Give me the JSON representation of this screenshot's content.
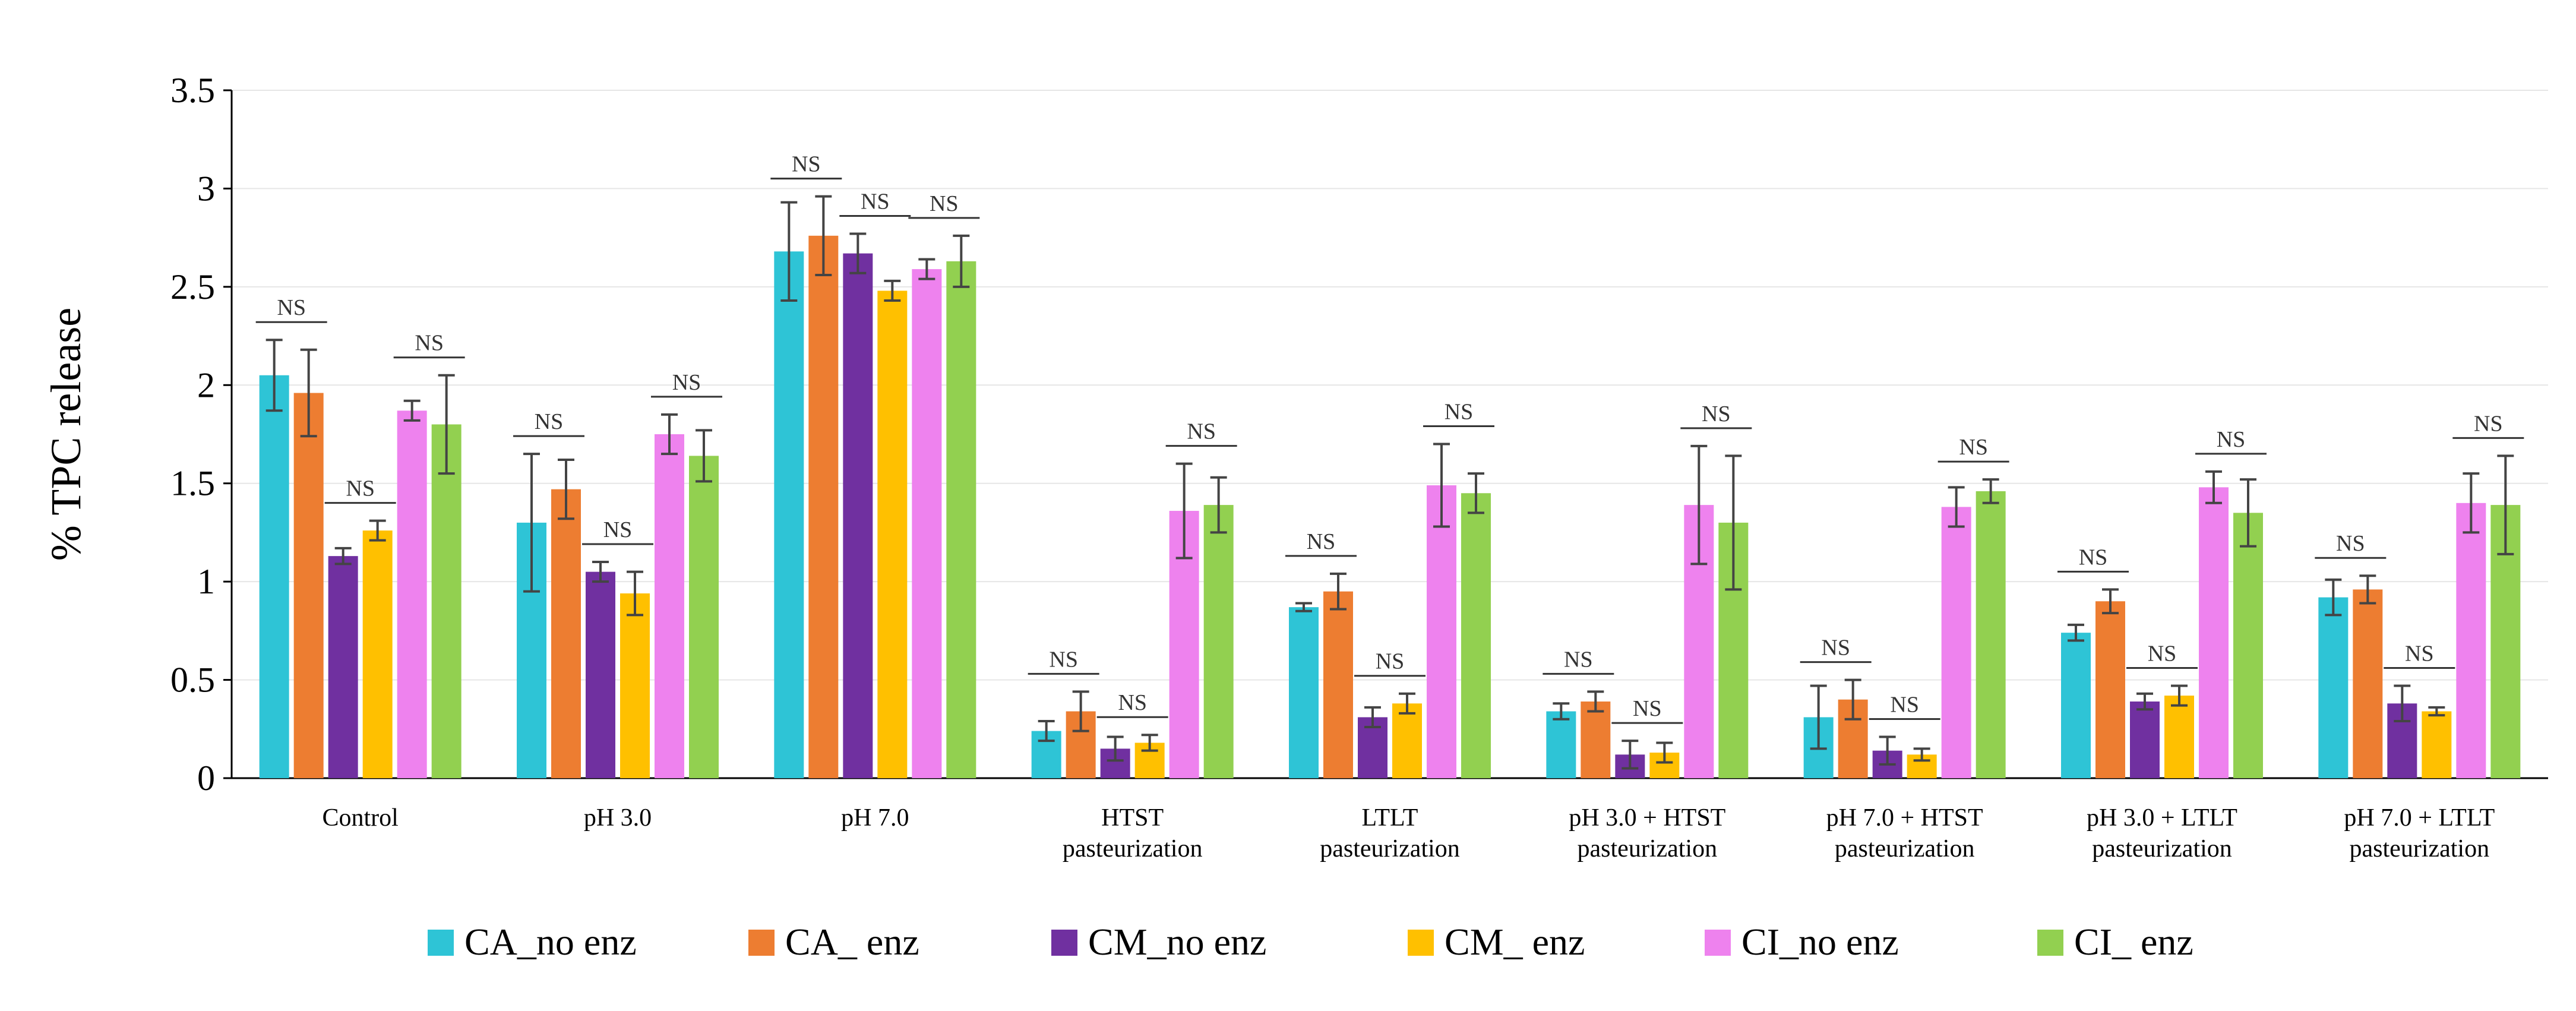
{
  "chart_data": {
    "type": "bar",
    "title": "",
    "xlabel": "",
    "ylabel": "% TPC release",
    "ylim": [
      0,
      3.5
    ],
    "yticks": [
      0,
      0.5,
      1,
      1.5,
      2,
      2.5,
      3,
      3.5
    ],
    "ytick_labels": [
      "0",
      "0.5",
      "1",
      "1.5",
      "2",
      "2.5",
      "3",
      "3.5"
    ],
    "grid": true,
    "legend_position": "bottom",
    "categories": [
      [
        "Control"
      ],
      [
        "pH 3.0"
      ],
      [
        "pH 7.0"
      ],
      [
        "HTST",
        "pasteurization"
      ],
      [
        "LTLT",
        "pasteurization"
      ],
      [
        "pH 3.0 + HTST",
        "pasteurization"
      ],
      [
        "pH 7.0 + HTST",
        "pasteurization"
      ],
      [
        "pH 3.0 + LTLT",
        "pasteurization"
      ],
      [
        "pH 7.0 + LTLT",
        "pasteurization"
      ]
    ],
    "series": [
      {
        "name": "CA_no enz",
        "color": "#2EC4D6",
        "values": [
          2.05,
          1.3,
          2.68,
          0.24,
          0.87,
          0.34,
          0.31,
          0.74,
          0.92
        ],
        "errors": [
          0.18,
          0.35,
          0.25,
          0.05,
          0.02,
          0.04,
          0.16,
          0.04,
          0.09
        ]
      },
      {
        "name": "CA_ enz",
        "color": "#ED7D31",
        "values": [
          1.96,
          1.47,
          2.76,
          0.34,
          0.95,
          0.39,
          0.4,
          0.9,
          0.96
        ],
        "errors": [
          0.22,
          0.15,
          0.2,
          0.1,
          0.09,
          0.05,
          0.1,
          0.06,
          0.07
        ]
      },
      {
        "name": "CM_no enz",
        "color": "#7030A0",
        "values": [
          1.13,
          1.05,
          2.67,
          0.15,
          0.31,
          0.12,
          0.14,
          0.39,
          0.38
        ],
        "errors": [
          0.04,
          0.05,
          0.1,
          0.06,
          0.05,
          0.07,
          0.07,
          0.04,
          0.09
        ]
      },
      {
        "name": "CM_ enz",
        "color": "#FFC000",
        "values": [
          1.26,
          0.94,
          2.48,
          0.18,
          0.38,
          0.13,
          0.12,
          0.42,
          0.34
        ],
        "errors": [
          0.05,
          0.11,
          0.05,
          0.04,
          0.05,
          0.05,
          0.03,
          0.05,
          0.02
        ]
      },
      {
        "name": "CI_no enz",
        "color": "#EE82EE",
        "values": [
          1.87,
          1.75,
          2.59,
          1.36,
          1.49,
          1.39,
          1.38,
          1.48,
          1.4
        ],
        "errors": [
          0.05,
          0.1,
          0.05,
          0.24,
          0.21,
          0.3,
          0.1,
          0.08,
          0.15
        ]
      },
      {
        "name": "CI_ enz",
        "color": "#92D050",
        "values": [
          1.8,
          1.64,
          2.63,
          1.39,
          1.45,
          1.3,
          1.46,
          1.35,
          1.39
        ],
        "errors": [
          0.25,
          0.13,
          0.13,
          0.14,
          0.1,
          0.34,
          0.06,
          0.17,
          0.25
        ]
      }
    ],
    "annotations": {
      "label": "NS",
      "comment": "pairs = [first bar index, second bar index] within each category group",
      "pairs_per_category": [
        [
          [
            0,
            1
          ],
          [
            2,
            3
          ],
          [
            4,
            5
          ]
        ],
        [
          [
            0,
            1
          ],
          [
            2,
            3
          ],
          [
            4,
            5
          ]
        ],
        [
          [
            0,
            1
          ],
          [
            2,
            3
          ],
          [
            4,
            5
          ]
        ],
        [
          [
            0,
            1
          ],
          [
            2,
            3
          ],
          [
            4,
            5
          ]
        ],
        [
          [
            0,
            1
          ],
          [
            2,
            3
          ],
          [
            4,
            5
          ]
        ],
        [
          [
            0,
            1
          ],
          [
            2,
            3
          ],
          [
            4,
            5
          ]
        ],
        [
          [
            0,
            1
          ],
          [
            2,
            3
          ],
          [
            4,
            5
          ]
        ],
        [
          [
            0,
            1
          ],
          [
            2,
            3
          ],
          [
            4,
            5
          ]
        ],
        [
          [
            0,
            1
          ],
          [
            2,
            3
          ],
          [
            4,
            5
          ]
        ]
      ]
    }
  }
}
